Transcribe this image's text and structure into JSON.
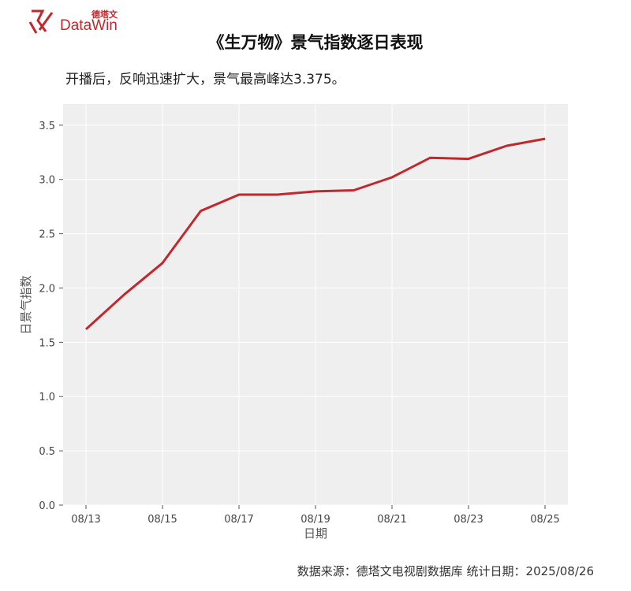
{
  "brand": {
    "name_cn": "德塔文",
    "name_en": "DataWin",
    "logo_icon": "datawin-logo-icon",
    "color": "#c0282d"
  },
  "title": "《生万物》景气指数逐日表现",
  "subtitle": "开播后，反响迅速扩大，景气最高峰达3.375。",
  "source": "数据来源：德塔文电视剧数据库 统计日期：2025/08/26",
  "chart_data": {
    "type": "line",
    "x": [
      "08/13",
      "08/14",
      "08/15",
      "08/16",
      "08/17",
      "08/18",
      "08/19",
      "08/20",
      "08/21",
      "08/22",
      "08/23",
      "08/24",
      "08/25"
    ],
    "series": [
      {
        "values": [
          1.62,
          1.94,
          2.23,
          2.71,
          2.86,
          2.86,
          2.89,
          2.9,
          3.02,
          3.2,
          3.19,
          3.31,
          3.375
        ],
        "color": "#c0282d"
      }
    ],
    "xticks": [
      "08/13",
      "08/15",
      "08/17",
      "08/19",
      "08/21",
      "08/23",
      "08/25"
    ],
    "yticks": [
      "0.0",
      "0.5",
      "1.0",
      "1.5",
      "2.0",
      "2.5",
      "3.0",
      "3.5"
    ],
    "xlabel": "日期",
    "ylabel": "日景气指数",
    "ylim": [
      0,
      3.5
    ],
    "grid": true
  }
}
